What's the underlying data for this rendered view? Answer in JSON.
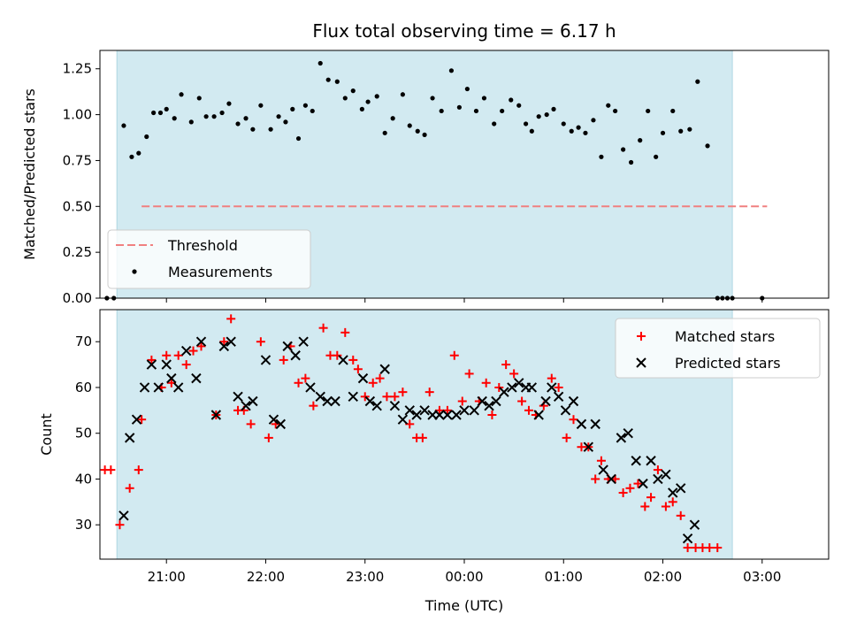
{
  "chart_data": {
    "title": "Flux total observing time = 6.17 h",
    "xlabel": "Time (UTC)",
    "xlim": [
      20.33,
      27.67
    ],
    "xticks": [
      21,
      22,
      23,
      24,
      25,
      26,
      27
    ],
    "xtick_labels": [
      "21:00",
      "22:00",
      "23:00",
      "00:00",
      "01:00",
      "02:00",
      "03:00"
    ],
    "observing_window": [
      20.5,
      26.7
    ],
    "window_color": "#add8e6",
    "panels": [
      {
        "type": "scatter",
        "ylabel": "Matched/Predicted stars",
        "ylim": [
          0,
          1.35
        ],
        "yticks": [
          0.0,
          0.25,
          0.5,
          0.75,
          1.0,
          1.25
        ],
        "ytick_labels": [
          "0.00",
          "0.25",
          "0.50",
          "0.75",
          "1.00",
          "1.25"
        ],
        "threshold": {
          "name": "Threshold",
          "value": 0.5,
          "x_range": [
            20.75,
            27.05
          ],
          "color": "#f08080"
        },
        "measurements": {
          "name": "Measurements",
          "color": "#000000",
          "points": [
            [
              20.4,
              0.0
            ],
            [
              20.47,
              0.0
            ],
            [
              20.57,
              0.94
            ],
            [
              20.65,
              0.77
            ],
            [
              20.72,
              0.79
            ],
            [
              20.8,
              0.88
            ],
            [
              20.87,
              1.01
            ],
            [
              20.94,
              1.01
            ],
            [
              21.0,
              1.03
            ],
            [
              21.08,
              0.98
            ],
            [
              21.15,
              1.11
            ],
            [
              21.25,
              0.96
            ],
            [
              21.33,
              1.09
            ],
            [
              21.4,
              0.99
            ],
            [
              21.48,
              0.99
            ],
            [
              21.56,
              1.01
            ],
            [
              21.63,
              1.06
            ],
            [
              21.72,
              0.95
            ],
            [
              21.8,
              0.98
            ],
            [
              21.87,
              0.92
            ],
            [
              21.95,
              1.05
            ],
            [
              22.05,
              0.92
            ],
            [
              22.13,
              0.99
            ],
            [
              22.2,
              0.96
            ],
            [
              22.27,
              1.03
            ],
            [
              22.33,
              0.87
            ],
            [
              22.4,
              1.05
            ],
            [
              22.47,
              1.02
            ],
            [
              22.55,
              1.28
            ],
            [
              22.63,
              1.19
            ],
            [
              22.72,
              1.18
            ],
            [
              22.8,
              1.09
            ],
            [
              22.88,
              1.13
            ],
            [
              22.97,
              1.03
            ],
            [
              23.03,
              1.07
            ],
            [
              23.12,
              1.1
            ],
            [
              23.2,
              0.9
            ],
            [
              23.28,
              0.98
            ],
            [
              23.38,
              1.11
            ],
            [
              23.45,
              0.94
            ],
            [
              23.53,
              0.91
            ],
            [
              23.6,
              0.89
            ],
            [
              23.68,
              1.09
            ],
            [
              23.77,
              1.02
            ],
            [
              23.87,
              1.24
            ],
            [
              23.95,
              1.04
            ],
            [
              24.03,
              1.14
            ],
            [
              24.12,
              1.02
            ],
            [
              24.2,
              1.09
            ],
            [
              24.3,
              0.95
            ],
            [
              24.38,
              1.02
            ],
            [
              24.47,
              1.08
            ],
            [
              24.55,
              1.05
            ],
            [
              24.62,
              0.95
            ],
            [
              24.68,
              0.91
            ],
            [
              24.75,
              0.99
            ],
            [
              24.83,
              1.0
            ],
            [
              24.9,
              1.03
            ],
            [
              25.0,
              0.95
            ],
            [
              25.08,
              0.91
            ],
            [
              25.15,
              0.93
            ],
            [
              25.22,
              0.9
            ],
            [
              25.3,
              0.97
            ],
            [
              25.38,
              0.77
            ],
            [
              25.45,
              1.05
            ],
            [
              25.52,
              1.02
            ],
            [
              25.6,
              0.81
            ],
            [
              25.68,
              0.74
            ],
            [
              25.77,
              0.86
            ],
            [
              25.85,
              1.02
            ],
            [
              25.93,
              0.77
            ],
            [
              26.0,
              0.9
            ],
            [
              26.1,
              1.02
            ],
            [
              26.18,
              0.91
            ],
            [
              26.27,
              0.92
            ],
            [
              26.35,
              1.18
            ],
            [
              26.45,
              0.83
            ],
            [
              26.55,
              0.0
            ],
            [
              26.6,
              0.0
            ],
            [
              26.65,
              0.0
            ],
            [
              26.7,
              0.0
            ],
            [
              27.0,
              0.0
            ]
          ]
        },
        "legend": {
          "placement": "lower-left",
          "entries": [
            "Threshold",
            "Measurements"
          ]
        }
      },
      {
        "type": "scatter",
        "ylabel": "Count",
        "ylim": [
          22.5,
          77.0
        ],
        "yticks": [
          30,
          40,
          50,
          60,
          70
        ],
        "ytick_labels": [
          "30",
          "40",
          "50",
          "60",
          "70"
        ],
        "series": [
          {
            "name": "Matched stars",
            "marker": "plus",
            "color": "#ff0000",
            "points": [
              [
                20.38,
                42
              ],
              [
                20.44,
                42
              ],
              [
                20.53,
                30
              ],
              [
                20.63,
                38
              ],
              [
                20.72,
                42
              ],
              [
                20.75,
                53
              ],
              [
                20.85,
                66
              ],
              [
                20.95,
                60
              ],
              [
                21.0,
                67
              ],
              [
                21.05,
                61
              ],
              [
                21.12,
                67
              ],
              [
                21.2,
                65
              ],
              [
                21.27,
                68
              ],
              [
                21.35,
                69
              ],
              [
                21.5,
                54
              ],
              [
                21.58,
                70
              ],
              [
                21.65,
                75
              ],
              [
                21.72,
                55
              ],
              [
                21.78,
                55
              ],
              [
                21.85,
                52
              ],
              [
                21.95,
                70
              ],
              [
                22.03,
                49
              ],
              [
                22.1,
                52
              ],
              [
                22.18,
                66
              ],
              [
                22.25,
                69
              ],
              [
                22.33,
                61
              ],
              [
                22.4,
                62
              ],
              [
                22.48,
                56
              ],
              [
                22.58,
                73
              ],
              [
                22.65,
                67
              ],
              [
                22.72,
                67
              ],
              [
                22.8,
                72
              ],
              [
                22.88,
                66
              ],
              [
                22.93,
                64
              ],
              [
                23.0,
                58
              ],
              [
                23.08,
                61
              ],
              [
                23.15,
                62
              ],
              [
                23.22,
                58
              ],
              [
                23.3,
                58
              ],
              [
                23.38,
                59
              ],
              [
                23.45,
                52
              ],
              [
                23.52,
                49
              ],
              [
                23.58,
                49
              ],
              [
                23.65,
                59
              ],
              [
                23.75,
                55
              ],
              [
                23.83,
                55
              ],
              [
                23.9,
                67
              ],
              [
                23.98,
                57
              ],
              [
                24.05,
                63
              ],
              [
                24.15,
                57
              ],
              [
                24.22,
                61
              ],
              [
                24.28,
                54
              ],
              [
                24.35,
                60
              ],
              [
                24.42,
                65
              ],
              [
                24.5,
                63
              ],
              [
                24.58,
                57
              ],
              [
                24.65,
                55
              ],
              [
                24.72,
                54
              ],
              [
                24.8,
                56
              ],
              [
                24.88,
                62
              ],
              [
                24.95,
                60
              ],
              [
                25.03,
                49
              ],
              [
                25.1,
                53
              ],
              [
                25.18,
                47
              ],
              [
                25.25,
                47
              ],
              [
                25.32,
                40
              ],
              [
                25.38,
                44
              ],
              [
                25.45,
                40
              ],
              [
                25.52,
                40
              ],
              [
                25.6,
                37
              ],
              [
                25.67,
                38
              ],
              [
                25.75,
                39
              ],
              [
                25.82,
                34
              ],
              [
                25.88,
                36
              ],
              [
                25.95,
                42
              ],
              [
                26.03,
                34
              ],
              [
                26.1,
                35
              ],
              [
                26.18,
                32
              ],
              [
                26.25,
                25
              ],
              [
                26.33,
                25
              ],
              [
                26.4,
                25
              ],
              [
                26.47,
                25
              ],
              [
                26.55,
                25
              ]
            ]
          },
          {
            "name": "Predicted stars",
            "marker": "x",
            "color": "#000000",
            "points": [
              [
                20.57,
                32
              ],
              [
                20.63,
                49
              ],
              [
                20.7,
                53
              ],
              [
                20.78,
                60
              ],
              [
                20.85,
                65
              ],
              [
                20.92,
                60
              ],
              [
                21.0,
                65
              ],
              [
                21.05,
                62
              ],
              [
                21.12,
                60
              ],
              [
                21.2,
                68
              ],
              [
                21.3,
                62
              ],
              [
                21.35,
                70
              ],
              [
                21.5,
                54
              ],
              [
                21.58,
                69
              ],
              [
                21.65,
                70
              ],
              [
                21.72,
                58
              ],
              [
                21.8,
                56
              ],
              [
                21.87,
                57
              ],
              [
                22.0,
                66
              ],
              [
                22.08,
                53
              ],
              [
                22.15,
                52
              ],
              [
                22.22,
                69
              ],
              [
                22.3,
                67
              ],
              [
                22.38,
                70
              ],
              [
                22.45,
                60
              ],
              [
                22.55,
                58
              ],
              [
                22.62,
                57
              ],
              [
                22.7,
                57
              ],
              [
                22.78,
                66
              ],
              [
                22.88,
                58
              ],
              [
                22.98,
                62
              ],
              [
                23.05,
                57
              ],
              [
                23.12,
                56
              ],
              [
                23.2,
                64
              ],
              [
                23.3,
                56
              ],
              [
                23.38,
                53
              ],
              [
                23.45,
                55
              ],
              [
                23.52,
                54
              ],
              [
                23.6,
                55
              ],
              [
                23.68,
                54
              ],
              [
                23.75,
                54
              ],
              [
                23.83,
                54
              ],
              [
                23.92,
                54
              ],
              [
                24.0,
                55
              ],
              [
                24.1,
                55
              ],
              [
                24.18,
                57
              ],
              [
                24.25,
                56
              ],
              [
                24.32,
                57
              ],
              [
                24.4,
                59
              ],
              [
                24.48,
                60
              ],
              [
                24.55,
                61
              ],
              [
                24.62,
                60
              ],
              [
                24.68,
                60
              ],
              [
                24.75,
                54
              ],
              [
                24.82,
                57
              ],
              [
                24.88,
                60
              ],
              [
                24.95,
                58
              ],
              [
                25.02,
                55
              ],
              [
                25.1,
                57
              ],
              [
                25.18,
                52
              ],
              [
                25.25,
                47
              ],
              [
                25.32,
                52
              ],
              [
                25.4,
                42
              ],
              [
                25.48,
                40
              ],
              [
                25.58,
                49
              ],
              [
                25.65,
                50
              ],
              [
                25.73,
                44
              ],
              [
                25.8,
                39
              ],
              [
                25.88,
                44
              ],
              [
                25.95,
                40
              ],
              [
                26.03,
                41
              ],
              [
                26.1,
                37
              ],
              [
                26.18,
                38
              ],
              [
                26.25,
                27
              ],
              [
                26.32,
                30
              ]
            ]
          }
        ],
        "legend": {
          "placement": "upper-right",
          "entries": [
            "Matched stars",
            "Predicted stars"
          ]
        }
      }
    ]
  }
}
